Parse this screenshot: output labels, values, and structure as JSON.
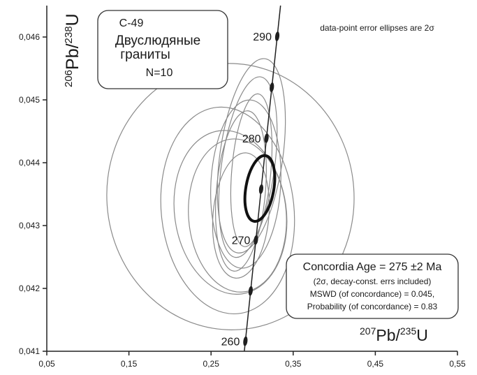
{
  "chart_data": {
    "type": "concordia",
    "note": "data-point error ellipses are 2σ",
    "sample_box": {
      "lines": [
        "C-49",
        "Двуслюдяные",
        "граниты",
        "N=10"
      ]
    },
    "result_box": {
      "lines": [
        "Concordia Age = 275 ±2 Ma",
        "(2σ, decay-const. errs included)",
        "MSWD (of concordance) = 0.045,",
        "Probability (of concordance) = 0.83"
      ]
    },
    "xlabel": [
      "207",
      "Pb/",
      "235",
      "U"
    ],
    "ylabel": [
      "206",
      "Pb/",
      "238",
      "U"
    ],
    "xlim": [
      0.05,
      0.55
    ],
    "ylim": [
      0.041,
      0.0465
    ],
    "xticks": [
      {
        "value": 0.05,
        "label": "0,05"
      },
      {
        "value": 0.15,
        "label": "0,15"
      },
      {
        "value": 0.25,
        "label": "0,25"
      },
      {
        "value": 0.35,
        "label": "0,35"
      },
      {
        "value": 0.45,
        "label": "0,45"
      },
      {
        "value": 0.55,
        "label": "0,55"
      }
    ],
    "yticks": [
      {
        "value": 0.041,
        "label": "0,041"
      },
      {
        "value": 0.042,
        "label": "0,042"
      },
      {
        "value": 0.043,
        "label": "0,043"
      },
      {
        "value": 0.044,
        "label": "0,044"
      },
      {
        "value": 0.045,
        "label": "0,045"
      },
      {
        "value": 0.046,
        "label": "0,046"
      }
    ],
    "concordia": {
      "color": "#1f1f1f",
      "ages": [
        260,
        null,
        270,
        null,
        280,
        null,
        290
      ],
      "x": [
        0.2918,
        0.2982,
        0.3046,
        0.311,
        0.3175,
        0.324,
        0.3306
      ],
      "y": [
        0.04116,
        0.04196,
        0.04277,
        0.04358,
        0.04439,
        0.0452,
        0.04601
      ]
    },
    "ellipses": {
      "color": "#8a8a8a",
      "cx": [
        0.2736,
        0.2702,
        0.2736,
        0.2821,
        0.2991,
        0.2949,
        0.2864,
        0.2991,
        0.2864,
        0.2923
      ],
      "cy": [
        0.04346,
        0.04324,
        0.04321,
        0.04316,
        0.04411,
        0.04393,
        0.04355,
        0.04388,
        0.04316,
        0.04366
      ],
      "rx": [
        0.1505,
        0.0808,
        0.068,
        0.0595,
        0.0383,
        0.0323,
        0.0298,
        0.0238,
        0.034,
        0.0425
      ],
      "ry": [
        0.00212,
        0.00165,
        0.00131,
        0.00122,
        0.00156,
        0.00145,
        0.00128,
        0.00122,
        0.001,
        0.00134
      ],
      "angle": [
        -4,
        -6,
        -8,
        -4,
        8,
        8,
        5,
        5,
        5,
        3
      ]
    },
    "concordia_ellipse": {
      "color": "#111111",
      "x": 0.3094,
      "y": 0.04359,
      "rx": 0.017,
      "ry": 0.00053,
      "angle": 10
    }
  }
}
